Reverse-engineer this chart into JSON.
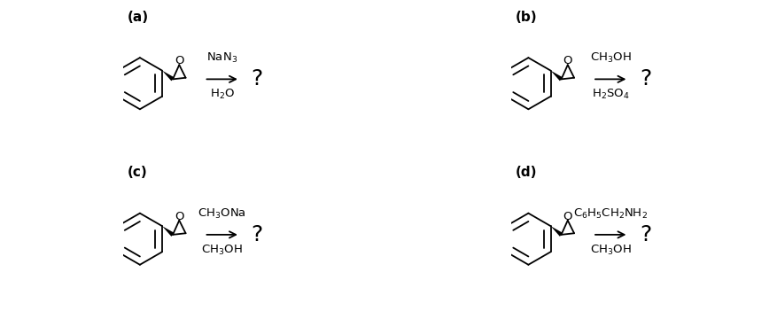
{
  "panels": [
    {
      "label": "(a)",
      "r1": "NaN$_3$",
      "r2": "H$_2$O"
    },
    {
      "label": "(b)",
      "r1": "CH$_3$OH",
      "r2": "H$_2$SO$_4$"
    },
    {
      "label": "(c)",
      "r1": "CH$_3$ONa",
      "r2": "CH$_3$OH"
    },
    {
      "label": "(d)",
      "r1": "C$_6$H$_5$CH$_2$NH$_2$",
      "r2": "CH$_3$OH"
    }
  ],
  "bg_color": "#ffffff",
  "text_color": "#000000",
  "label_fontsize": 11,
  "reagent_fontsize": 9.5,
  "question_fontsize": 18,
  "lw": 1.3
}
